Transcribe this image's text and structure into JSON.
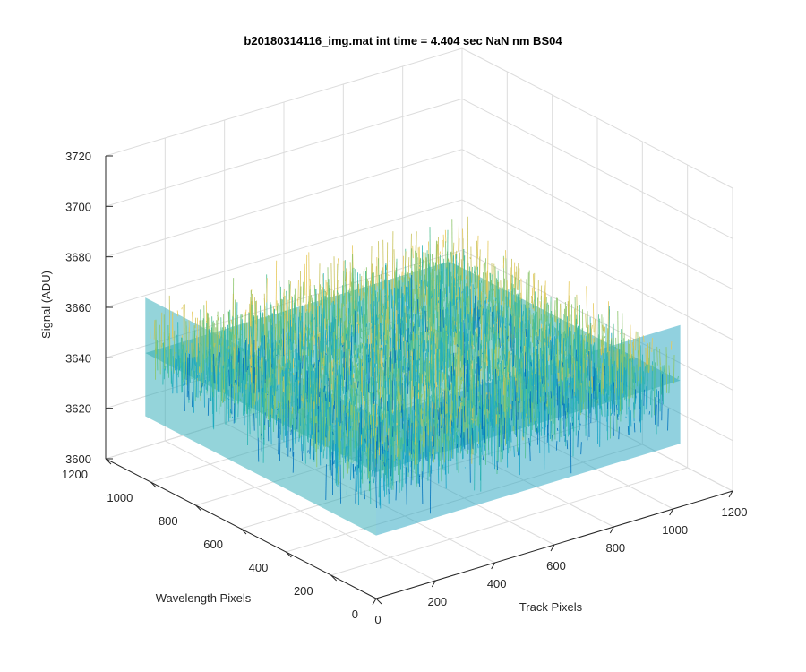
{
  "chart_data": {
    "type": "surface",
    "title": "b20180314116_img.mat int time = 4.404 sec  NaN nm BS04",
    "xlabel": "Track Pixels",
    "ylabel": "Wavelength Pixels",
    "zlabel": "Signal (ADU)",
    "xlim": [
      0,
      1200
    ],
    "ylim": [
      0,
      1200
    ],
    "zlim": [
      3600,
      3720
    ],
    "xticks": [
      "0",
      "200",
      "400",
      "600",
      "800",
      "1000",
      "1200"
    ],
    "yticks": [
      "0",
      "200",
      "400",
      "600",
      "800",
      "1000",
      "1200"
    ],
    "zticks": [
      "3600",
      "3620",
      "3640",
      "3660",
      "3680",
      "3700",
      "3720"
    ],
    "surface": {
      "x_range": [
        0,
        1024
      ],
      "y_range": [
        0,
        1024
      ],
      "mean": 3650,
      "spread_min": 3620,
      "spread_max": 3690,
      "colormap": [
        "#0072bd",
        "#17a2c7",
        "#2ab3b3",
        "#4fbf8f",
        "#8cc56a",
        "#c8c25a",
        "#e6c95a"
      ]
    },
    "grid": true,
    "view": "3d-azimuth-elevation"
  }
}
